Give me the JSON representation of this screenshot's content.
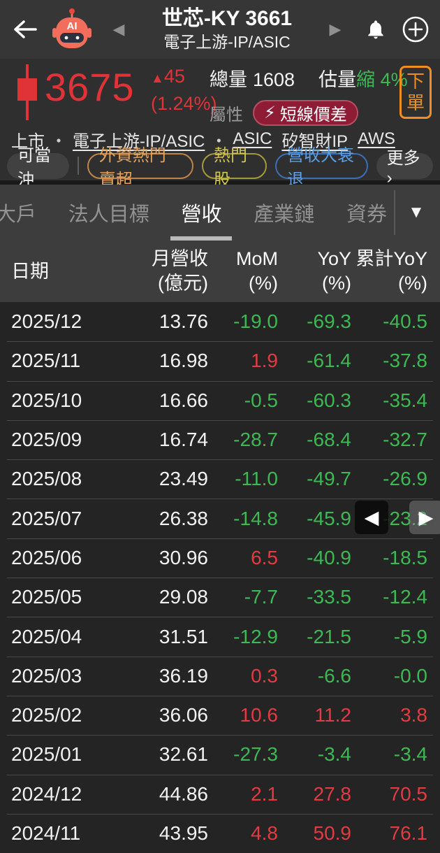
{
  "colors": {
    "up_red": "#e23b41",
    "down_green": "#3db954",
    "accent_orange": "#ef8e1f",
    "badge_crimson": "#8e1c34"
  },
  "topbar": {
    "title": "世芯-KY 3661",
    "subtitle": "電子上游-IP/ASIC",
    "prev_caret": "◀",
    "next_caret": "▶",
    "robot_label": "AI"
  },
  "quote": {
    "price": "3675",
    "change_arrow": "▲",
    "change_value": "45",
    "change_pct": "(1.24%)",
    "volume_label": "總量",
    "volume_value": "1608",
    "estimate_label": "估量",
    "estimate_tag": "縮",
    "estimate_pct": "4%",
    "attribute_label": "屬性",
    "badge_bolt": "⚡",
    "badge_text": "短線價差",
    "order_line1": "下",
    "order_line2": "單"
  },
  "tags": {
    "market": "上市",
    "sep": "・",
    "links": [
      "電子上游-IP/ASIC",
      "ASIC",
      "矽智財IP",
      "AWS"
    ]
  },
  "pills": {
    "day_trade": "可當沖",
    "foreign_sell": "外資熱門賣超",
    "hot_stock": "熱門股",
    "revenue_decline": "營收大衰退",
    "more": "更多 ›"
  },
  "tabs": {
    "items": [
      "大戶",
      "法人目標",
      "營收",
      "產業鏈",
      "資券"
    ],
    "caret": "▼"
  },
  "table": {
    "header": {
      "date": "日期",
      "revenue_l1": "月營收",
      "revenue_l2": "(億元)",
      "mom_l1": "MoM",
      "mom_l2": "(%)",
      "yoy_l1": "YoY",
      "yoy_l2": "(%)",
      "cum_l1": "累計YoY",
      "cum_l2": "(%)"
    },
    "rows": [
      [
        "2025/12",
        "13.76",
        "-19.0",
        "-69.3",
        "-40.5"
      ],
      [
        "2025/11",
        "16.98",
        "1.9",
        "-61.4",
        "-37.8"
      ],
      [
        "2025/10",
        "16.66",
        "-0.5",
        "-60.3",
        "-35.4"
      ],
      [
        "2025/09",
        "16.74",
        "-28.7",
        "-68.4",
        "-32.7"
      ],
      [
        "2025/08",
        "23.49",
        "-11.0",
        "-49.7",
        "-26.9"
      ],
      [
        "2025/07",
        "26.38",
        "-14.8",
        "-45.9",
        "-23.2"
      ],
      [
        "2025/06",
        "30.96",
        "6.5",
        "-40.9",
        "-18.5"
      ],
      [
        "2025/05",
        "29.08",
        "-7.7",
        "-33.5",
        "-12.4"
      ],
      [
        "2025/04",
        "31.51",
        "-12.9",
        "-21.5",
        "-5.9"
      ],
      [
        "2025/03",
        "36.19",
        "0.3",
        "-6.6",
        "-0.0"
      ],
      [
        "2025/02",
        "36.06",
        "10.6",
        "11.2",
        "3.8"
      ],
      [
        "2025/01",
        "32.61",
        "-27.3",
        "-3.4",
        "-3.4"
      ],
      [
        "2024/12",
        "44.86",
        "2.1",
        "27.8",
        "70.5"
      ],
      [
        "2024/11",
        "43.95",
        "4.8",
        "50.9",
        "76.1"
      ]
    ]
  },
  "carousel": {
    "prev": "◀",
    "next": "▶"
  }
}
